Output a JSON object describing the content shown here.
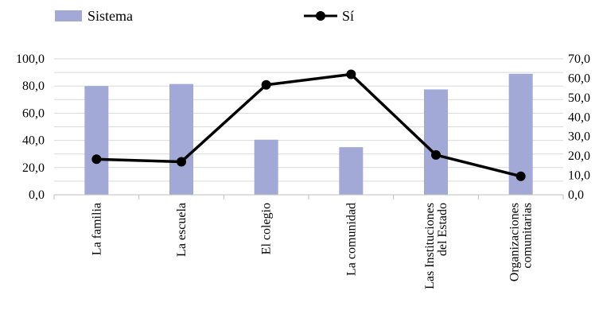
{
  "chart_data": {
    "type": "bar",
    "categories": [
      [
        "La familia"
      ],
      [
        "La escuela"
      ],
      [
        "El colegio"
      ],
      [
        "La comunidad"
      ],
      [
        "Las Instituciones",
        "del Estado"
      ],
      [
        "Organizaciones",
        "comunitarias"
      ]
    ],
    "series": [
      {
        "name": "Sistema",
        "type": "bar",
        "axis": "left",
        "values": [
          80.0,
          81.5,
          40.5,
          35.0,
          77.5,
          89.0
        ],
        "color": "#a3a9d6"
      },
      {
        "name": "Sí",
        "type": "line",
        "axis": "right",
        "values": [
          18.3,
          17.0,
          56.6,
          62.0,
          20.5,
          9.5
        ],
        "color": "#000000"
      }
    ],
    "y_left": {
      "range": [
        0,
        100
      ],
      "ticks": [
        "0,0",
        "20,0",
        "40,0",
        "60,0",
        "80,0",
        "100,0"
      ]
    },
    "y_right": {
      "range": [
        0,
        70
      ],
      "ticks": [
        "0,0",
        "10,0",
        "20,0",
        "30,0",
        "40,0",
        "50,0",
        "60,0",
        "70,0"
      ]
    },
    "legend": {
      "position": "top",
      "items": [
        "Sistema",
        "Sí"
      ]
    },
    "grid": true
  }
}
